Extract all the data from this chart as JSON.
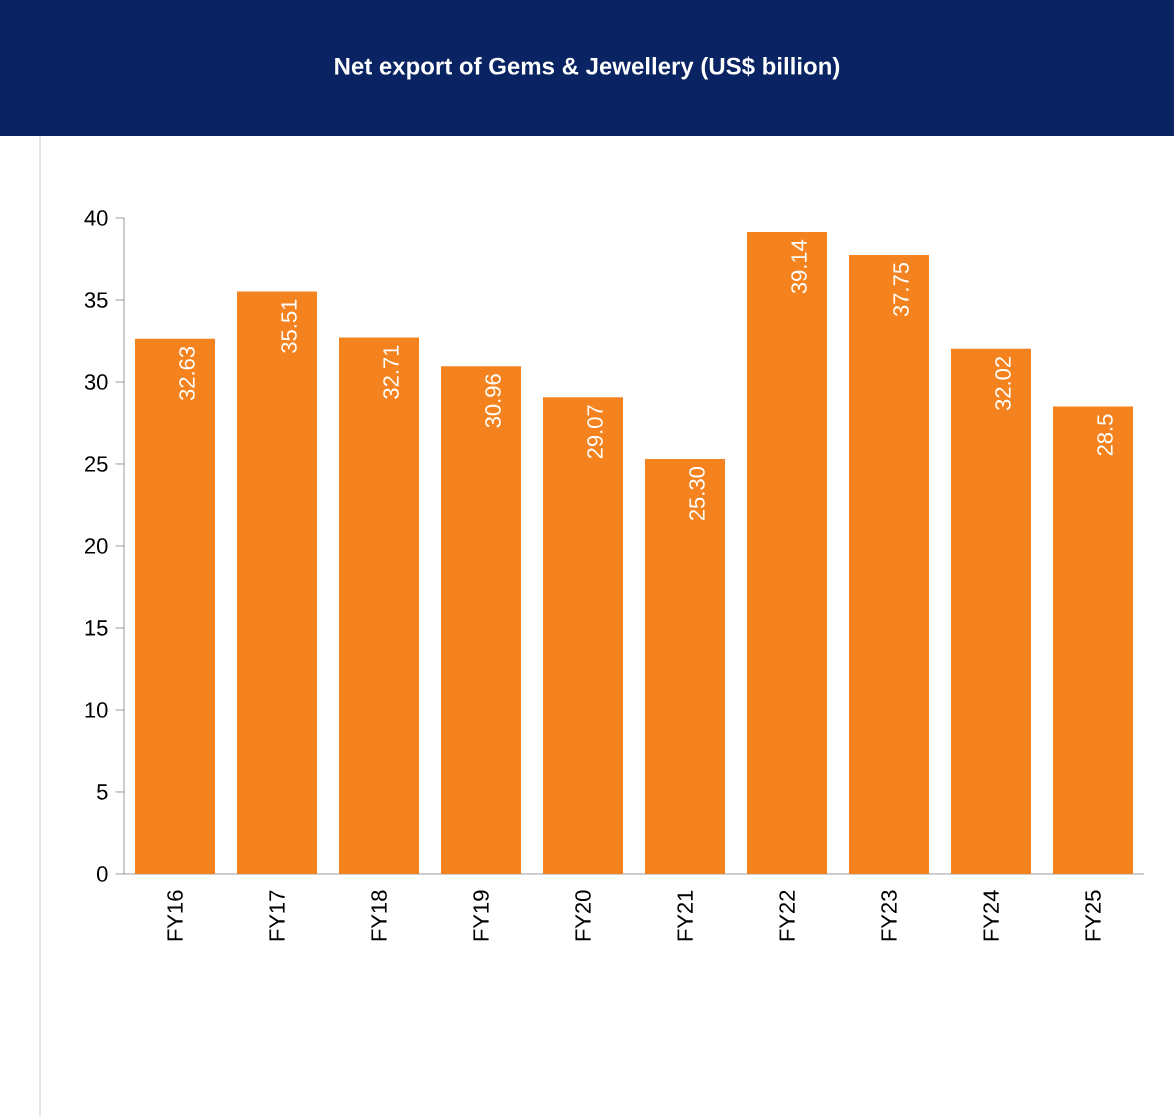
{
  "chart_data": {
    "type": "bar",
    "title": "Net export of Gems & Jewellery (US$ billion)",
    "categories": [
      "FY16",
      "FY17",
      "FY18",
      "FY19",
      "FY20",
      "FY21",
      "FY22",
      "FY23",
      "FY24",
      "FY25"
    ],
    "values": [
      32.63,
      35.51,
      32.71,
      30.96,
      29.07,
      25.3,
      39.14,
      37.75,
      32.02,
      28.5
    ],
    "value_labels": [
      "32.63",
      "35.51",
      "32.71",
      "30.96",
      "29.07",
      "25.30",
      "39.14",
      "37.75",
      "32.02",
      "28.5"
    ],
    "color": "#f4831f",
    "ylim": [
      0,
      40
    ],
    "yticks": [
      0,
      5,
      10,
      15,
      20,
      25,
      30,
      35,
      40
    ]
  }
}
